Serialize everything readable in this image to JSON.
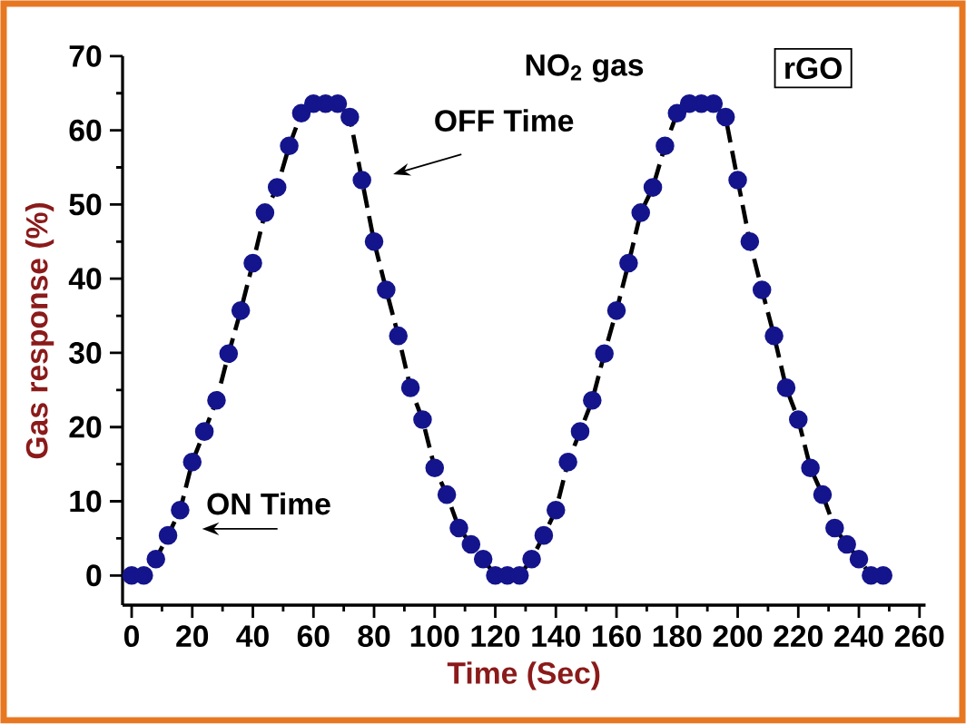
{
  "chart_data": {
    "type": "line",
    "xlabel": "Time (Sec)",
    "ylabel": "Gas response (%)",
    "annotations": [
      "NO$_{2}$ gas",
      "rGO",
      "ON Time",
      "OFF Time"
    ],
    "x": [
      0,
      4,
      8,
      12,
      16,
      20,
      24,
      28,
      32,
      36,
      40,
      44,
      48,
      52,
      56,
      60,
      64,
      68,
      72,
      76,
      80,
      84,
      88,
      92,
      96,
      100,
      104,
      108,
      112,
      116,
      120,
      124,
      128,
      132,
      136,
      140,
      144,
      148,
      152,
      156,
      160,
      164,
      168,
      172,
      176,
      180,
      184,
      188,
      192,
      196,
      200,
      204,
      208,
      212,
      216,
      220,
      224,
      228,
      232,
      236,
      240,
      244,
      248
    ],
    "series": [
      {
        "color": "#14148c",
        "values": [
          0,
          0,
          2.2,
          5.4,
          8.8,
          15.3,
          19.4,
          23.6,
          29.9,
          35.7,
          42.1,
          48.9,
          52.3,
          57.9,
          62.3,
          63.6,
          63.6,
          63.6,
          61.8,
          53.3,
          45,
          38.5,
          32.3,
          25.3,
          21,
          14.5,
          10.9,
          6.4,
          4.2,
          2.2,
          0,
          0,
          0,
          2.2,
          5.4,
          8.8,
          15.3,
          19.4,
          23.6,
          29.9,
          35.7,
          42.1,
          48.9,
          52.3,
          57.9,
          62.3,
          63.6,
          63.6,
          63.6,
          61.8,
          53.3,
          45,
          38.5,
          32.3,
          25.3,
          21,
          14.5,
          10.9,
          6.4,
          4.2,
          2.2,
          0,
          0
        ]
      }
    ],
    "xlim": [
      -3,
      262
    ],
    "ylim": [
      -4,
      70
    ],
    "xticks": [
      0,
      20,
      40,
      60,
      80,
      100,
      120,
      140,
      160,
      180,
      200,
      220,
      240,
      260
    ],
    "yticks": [
      0,
      10,
      20,
      30,
      40,
      50,
      60,
      70
    ],
    "marker": "circle",
    "line_style": "dashed"
  }
}
